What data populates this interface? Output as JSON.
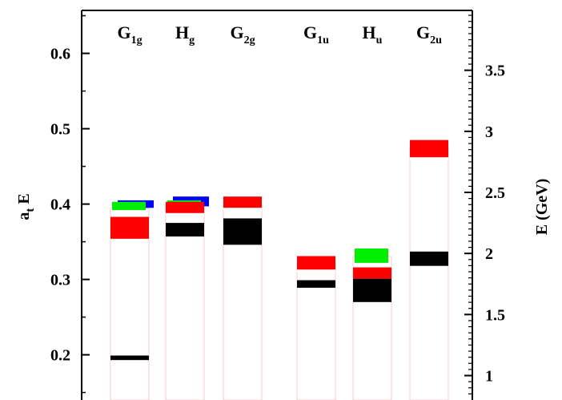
{
  "chart_data": {
    "type": "bar",
    "ylabel": "a",
    "ylabel_sub": "t",
    "ylabel_suffix": " E",
    "y2label": "E (GeV)",
    "ylim": [
      0.14,
      0.657
    ],
    "y2lim": [
      0.8,
      3.99
    ],
    "y_ticks": [
      "0.2",
      "0.3",
      "0.4",
      "0.5",
      "0.6"
    ],
    "y2_ticks": [
      "1",
      "1.5",
      "2",
      "2.5",
      "3",
      "3.5"
    ],
    "colors": {
      "black": "#000000",
      "red": "#ff0000",
      "green": "#00ee00",
      "blue": "#0000ff"
    },
    "categories": [
      {
        "base": "G",
        "sub": "1g",
        "bands": [
          {
            "color": "blue",
            "low": 0.395,
            "high": 0.405
          },
          {
            "color": "green",
            "low": 0.392,
            "high": 0.403
          },
          {
            "color": "red",
            "low": 0.354,
            "high": 0.383
          },
          {
            "color": "black",
            "low": 0.193,
            "high": 0.199
          }
        ]
      },
      {
        "base": "H",
        "sub": "g",
        "bands": [
          {
            "color": "blue",
            "low": 0.397,
            "high": 0.41
          },
          {
            "color": "green",
            "low": 0.394,
            "high": 0.405
          },
          {
            "color": "red",
            "low": 0.388,
            "high": 0.403
          },
          {
            "color": "black",
            "low": 0.357,
            "high": 0.375
          }
        ]
      },
      {
        "base": "G",
        "sub": "2g",
        "bands": [
          {
            "color": "red",
            "low": 0.395,
            "high": 0.41
          },
          {
            "color": "black",
            "low": 0.346,
            "high": 0.381
          }
        ]
      },
      {
        "base": "G",
        "sub": "1u",
        "bands": [
          {
            "color": "red",
            "low": 0.313,
            "high": 0.331
          },
          {
            "color": "black",
            "low": 0.289,
            "high": 0.299
          }
        ]
      },
      {
        "base": "H",
        "sub": "u",
        "bands": [
          {
            "color": "green",
            "low": 0.322,
            "high": 0.341
          },
          {
            "color": "red",
            "low": 0.301,
            "high": 0.316
          },
          {
            "color": "black",
            "low": 0.27,
            "high": 0.301
          }
        ]
      },
      {
        "base": "G",
        "sub": "2u",
        "bands": [
          {
            "color": "red",
            "low": 0.462,
            "high": 0.485
          },
          {
            "color": "black",
            "low": 0.318,
            "high": 0.337
          }
        ]
      }
    ]
  }
}
